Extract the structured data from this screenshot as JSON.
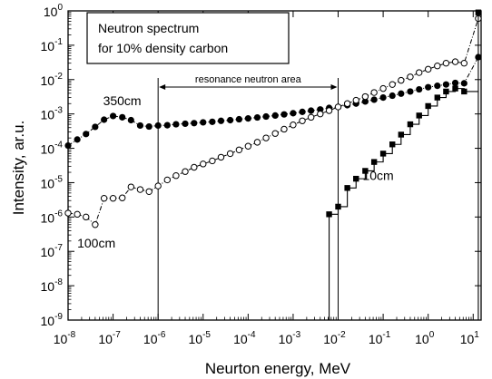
{
  "chart_data": {
    "type": "line",
    "xscale": "log",
    "yscale": "log",
    "xlim": [
      1e-08,
      15.0
    ],
    "ylim": [
      1e-09,
      1.0
    ],
    "xlabel": "Neurton energy, MeV",
    "ylabel": "Intensity, ar.u.",
    "grid": false,
    "x_ticks": [
      {
        "value": 1e-08,
        "base": "10",
        "exp": "-8"
      },
      {
        "value": 1e-07,
        "base": "10",
        "exp": "-7"
      },
      {
        "value": 1e-06,
        "base": "10",
        "exp": "-6"
      },
      {
        "value": 1e-05,
        "base": "10",
        "exp": "-5"
      },
      {
        "value": 0.0001,
        "base": "10",
        "exp": "-4"
      },
      {
        "value": 0.001,
        "base": "10",
        "exp": "-3"
      },
      {
        "value": 0.01,
        "base": "10",
        "exp": "-2"
      },
      {
        "value": 0.1,
        "base": "10",
        "exp": "-1"
      },
      {
        "value": 1.0,
        "base": "10",
        "exp": "0"
      },
      {
        "value": 10.0,
        "base": "10",
        "exp": "1"
      }
    ],
    "y_ticks": [
      {
        "value": 1e-09,
        "base": "10",
        "exp": "-9"
      },
      {
        "value": 1e-08,
        "base": "10",
        "exp": "-8"
      },
      {
        "value": 1e-07,
        "base": "10",
        "exp": "-7"
      },
      {
        "value": 1e-06,
        "base": "10",
        "exp": "-6"
      },
      {
        "value": 1e-05,
        "base": "10",
        "exp": "-5"
      },
      {
        "value": 0.0001,
        "base": "10",
        "exp": "-4"
      },
      {
        "value": 0.001,
        "base": "10",
        "exp": "-3"
      },
      {
        "value": 0.01,
        "base": "10",
        "exp": "-2"
      },
      {
        "value": 0.1,
        "base": "10",
        "exp": "-1"
      },
      {
        "value": 1.0,
        "base": "10",
        "exp": "0"
      }
    ],
    "legend_text": [
      "Neutron spectrum",
      "for 10% density carbon"
    ],
    "resonance_region": {
      "x_start": 1e-06,
      "x_end": 0.01,
      "label": "resonance neutron area"
    },
    "series": [
      {
        "name": "350cm",
        "marker": "filled-circle",
        "line": "dash-dot",
        "points": [
          [
            1e-08,
            0.00012
          ],
          [
            1.6e-08,
            0.00018
          ],
          [
            2.5e-08,
            0.00026
          ],
          [
            4e-08,
            0.00042
          ],
          [
            6.3e-08,
            0.00068
          ],
          [
            1e-07,
            0.00087
          ],
          [
            1.6e-07,
            0.0008
          ],
          [
            2.5e-07,
            0.00066
          ],
          [
            4e-07,
            0.00046
          ],
          [
            6.3e-07,
            0.00043
          ],
          [
            1e-06,
            0.00046
          ],
          [
            1.6e-06,
            0.00047
          ],
          [
            2.5e-06,
            0.0005
          ],
          [
            4e-06,
            0.00052
          ],
          [
            6.3e-06,
            0.00054
          ],
          [
            1e-05,
            0.00057
          ],
          [
            1.6e-05,
            0.00059
          ],
          [
            2.5e-05,
            0.00063
          ],
          [
            4e-05,
            0.00066
          ],
          [
            6.3e-05,
            0.0007
          ],
          [
            0.0001,
            0.00074
          ],
          [
            0.00016,
            0.00079
          ],
          [
            0.00025,
            0.00084
          ],
          [
            0.0004,
            0.0009
          ],
          [
            0.00063,
            0.00097
          ],
          [
            0.001,
            0.00105
          ],
          [
            0.0016,
            0.00115
          ],
          [
            0.0025,
            0.00125
          ],
          [
            0.004,
            0.00135
          ],
          [
            0.0063,
            0.0015
          ],
          [
            0.01,
            0.0016
          ],
          [
            0.016,
            0.0018
          ],
          [
            0.025,
            0.002
          ],
          [
            0.04,
            0.0023
          ],
          [
            0.063,
            0.0026
          ],
          [
            0.1,
            0.003
          ],
          [
            0.16,
            0.0034
          ],
          [
            0.25,
            0.0039
          ],
          [
            0.4,
            0.0045
          ],
          [
            0.63,
            0.0052
          ],
          [
            1.0,
            0.006
          ],
          [
            1.6,
            0.0066
          ],
          [
            2.5,
            0.0072
          ],
          [
            4.0,
            0.008
          ],
          [
            6.3,
            0.0078
          ],
          [
            13.0,
            0.045
          ]
        ]
      },
      {
        "name": "100cm",
        "marker": "open-circle",
        "line": "dash-dot",
        "points": [
          [
            1e-08,
            1.3e-06
          ],
          [
            1.6e-08,
            1.2e-06
          ],
          [
            2.5e-08,
            1e-06
          ],
          [
            4e-08,
            6e-07
          ],
          [
            6.3e-08,
            3.5e-06
          ],
          [
            1e-07,
            3.5e-06
          ],
          [
            1.6e-07,
            3.6e-06
          ],
          [
            2.5e-07,
            7.5e-06
          ],
          [
            4e-07,
            6.3e-06
          ],
          [
            6.3e-07,
            5.5e-06
          ],
          [
            1e-06,
            8e-06
          ],
          [
            1.6e-06,
            1.2e-05
          ],
          [
            2.5e-06,
            1.6e-05
          ],
          [
            4e-06,
            2.1e-05
          ],
          [
            6.3e-06,
            2.8e-05
          ],
          [
            1e-05,
            3.5e-05
          ],
          [
            1.6e-05,
            4.3e-05
          ],
          [
            2.5e-05,
            5.5e-05
          ],
          [
            4e-05,
            7e-05
          ],
          [
            6.3e-05,
            9e-05
          ],
          [
            0.0001,
            0.000115
          ],
          [
            0.00016,
            0.00015
          ],
          [
            0.00025,
            0.0002
          ],
          [
            0.0004,
            0.00027
          ],
          [
            0.00063,
            0.00036
          ],
          [
            0.001,
            0.00048
          ],
          [
            0.0016,
            0.00063
          ],
          [
            0.0025,
            0.0008
          ],
          [
            0.004,
            0.001
          ],
          [
            0.0063,
            0.00125
          ],
          [
            0.01,
            0.0016
          ],
          [
            0.016,
            0.002
          ],
          [
            0.025,
            0.0025
          ],
          [
            0.04,
            0.0032
          ],
          [
            0.063,
            0.0042
          ],
          [
            0.1,
            0.0055
          ],
          [
            0.16,
            0.0072
          ],
          [
            0.25,
            0.0095
          ],
          [
            0.4,
            0.012
          ],
          [
            0.63,
            0.016
          ],
          [
            1.0,
            0.02
          ],
          [
            1.6,
            0.025
          ],
          [
            2.5,
            0.03
          ],
          [
            4.0,
            0.033
          ],
          [
            6.3,
            0.03
          ],
          [
            13.0,
            0.6
          ]
        ]
      },
      {
        "name": "10cm",
        "marker": "filled-square",
        "line": "step",
        "points": [
          [
            0.0063,
            1.2e-06
          ],
          [
            0.01,
            2e-06
          ],
          [
            0.016,
            7e-06
          ],
          [
            0.025,
            1.3e-05
          ],
          [
            0.04,
            2.2e-05
          ],
          [
            0.063,
            4e-05
          ],
          [
            0.1,
            7e-05
          ],
          [
            0.16,
            0.00013
          ],
          [
            0.25,
            0.00025
          ],
          [
            0.4,
            0.0005
          ],
          [
            0.63,
            0.0009
          ],
          [
            1.0,
            0.0017
          ],
          [
            1.6,
            0.003
          ],
          [
            2.5,
            0.0045
          ],
          [
            4.0,
            0.0055
          ],
          [
            6.3,
            0.0045
          ],
          [
            13.0,
            0.9
          ]
        ]
      }
    ],
    "annotations": [
      {
        "text": "350cm",
        "x": 6e-08,
        "y": 0.0018
      },
      {
        "text": "100cm",
        "x": 1.6e-08,
        "y": 1.3e-07
      },
      {
        "text": "10cm",
        "x": 0.035,
        "y": 1.2e-05
      }
    ]
  }
}
